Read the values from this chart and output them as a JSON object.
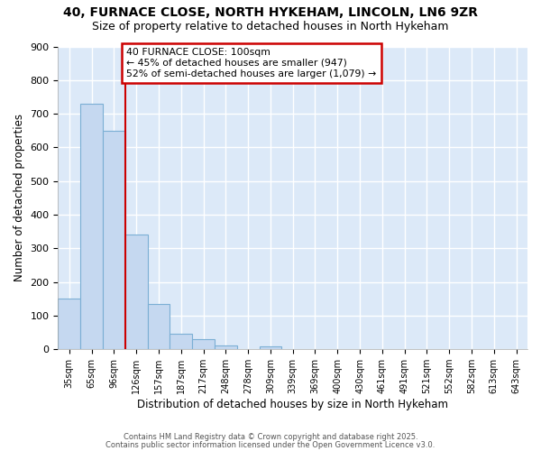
{
  "title1": "40, FURNACE CLOSE, NORTH HYKEHAM, LINCOLN, LN6 9ZR",
  "title2": "Size of property relative to detached houses in North Hykeham",
  "xlabel": "Distribution of detached houses by size in North Hykeham",
  "ylabel": "Number of detached properties",
  "bar_color": "#c5d8f0",
  "bar_edge_color": "#7bafd4",
  "background_color": "#dce9f8",
  "fig_background": "#ffffff",
  "grid_color": "#ffffff",
  "categories": [
    "35sqm",
    "65sqm",
    "96sqm",
    "126sqm",
    "157sqm",
    "187sqm",
    "217sqm",
    "248sqm",
    "278sqm",
    "309sqm",
    "339sqm",
    "369sqm",
    "400sqm",
    "430sqm",
    "461sqm",
    "491sqm",
    "521sqm",
    "552sqm",
    "582sqm",
    "613sqm",
    "643sqm"
  ],
  "values": [
    150,
    730,
    650,
    340,
    135,
    45,
    30,
    10,
    0,
    8,
    0,
    0,
    0,
    0,
    0,
    0,
    0,
    0,
    0,
    0,
    0
  ],
  "vline_index": 2,
  "vline_color": "#cc0000",
  "annotation_text": "40 FURNACE CLOSE: 100sqm\n← 45% of detached houses are smaller (947)\n52% of semi-detached houses are larger (1,079) →",
  "annotation_box_color": "#ffffff",
  "annotation_box_edge": "#cc0000",
  "ylim": [
    0,
    900
  ],
  "yticks": [
    0,
    100,
    200,
    300,
    400,
    500,
    600,
    700,
    800,
    900
  ],
  "footer1": "Contains HM Land Registry data © Crown copyright and database right 2025.",
  "footer2": "Contains public sector information licensed under the Open Government Licence v3.0."
}
